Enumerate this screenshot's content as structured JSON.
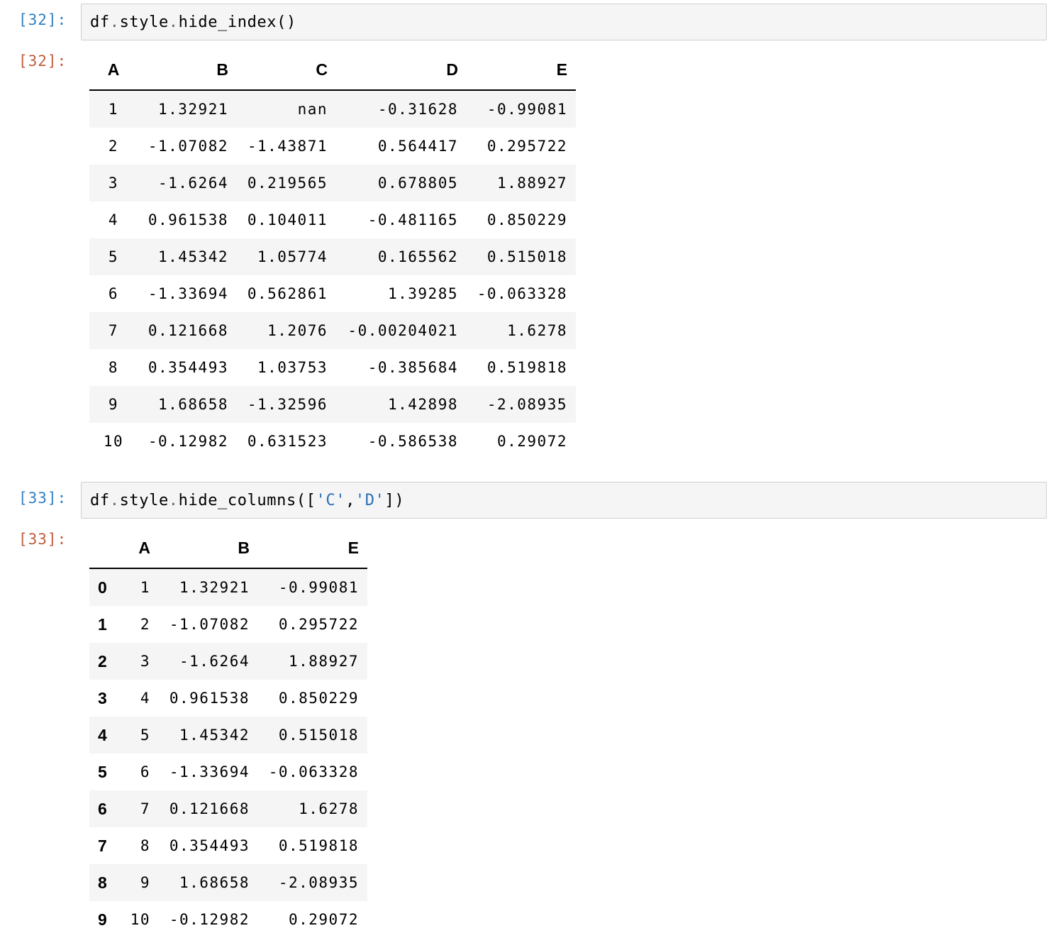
{
  "cells": [
    {
      "in_prompt": "[32]:",
      "out_prompt": "[32]:",
      "code": {
        "obj": "df",
        "dot1": ".",
        "attr1": "style",
        "dot2": ".",
        "method": "hide_index",
        "args": "()"
      },
      "table": {
        "columns": [
          "A",
          "B",
          "C",
          "D",
          "E"
        ],
        "rows": [
          [
            "1",
            "1.32921",
            "nan",
            "-0.31628",
            "-0.99081"
          ],
          [
            "2",
            "-1.07082",
            "-1.43871",
            "0.564417",
            "0.295722"
          ],
          [
            "3",
            "-1.6264",
            "0.219565",
            "0.678805",
            "1.88927"
          ],
          [
            "4",
            "0.961538",
            "0.104011",
            "-0.481165",
            "0.850229"
          ],
          [
            "5",
            "1.45342",
            "1.05774",
            "0.165562",
            "0.515018"
          ],
          [
            "6",
            "-1.33694",
            "0.562861",
            "1.39285",
            "-0.063328"
          ],
          [
            "7",
            "0.121668",
            "1.2076",
            "-0.00204021",
            "1.6278"
          ],
          [
            "8",
            "0.354493",
            "1.03753",
            "-0.385684",
            "0.519818"
          ],
          [
            "9",
            "1.68658",
            "-1.32596",
            "1.42898",
            "-2.08935"
          ],
          [
            "10",
            "-0.12982",
            "0.631523",
            "-0.586538",
            "0.29072"
          ]
        ]
      }
    },
    {
      "in_prompt": "[33]:",
      "out_prompt": "[33]:",
      "code": {
        "obj": "df",
        "dot1": ".",
        "attr1": "style",
        "dot2": ".",
        "method": "hide_columns",
        "open": "([",
        "str1": "'C'",
        "comma": ",",
        "str2": "'D'",
        "close": "])"
      },
      "table": {
        "columns": [
          "A",
          "B",
          "E"
        ],
        "index": [
          "0",
          "1",
          "2",
          "3",
          "4",
          "5",
          "6",
          "7",
          "8",
          "9"
        ],
        "rows": [
          [
            "1",
            "1.32921",
            "-0.99081"
          ],
          [
            "2",
            "-1.07082",
            "0.295722"
          ],
          [
            "3",
            "-1.6264",
            "1.88927"
          ],
          [
            "4",
            "0.961538",
            "0.850229"
          ],
          [
            "5",
            "1.45342",
            "0.515018"
          ],
          [
            "6",
            "-1.33694",
            "-0.063328"
          ],
          [
            "7",
            "0.121668",
            "1.6278"
          ],
          [
            "8",
            "0.354493",
            "0.519818"
          ],
          [
            "9",
            "1.68658",
            "-2.08935"
          ],
          [
            "10",
            "-0.12982",
            "0.29072"
          ]
        ]
      }
    }
  ]
}
